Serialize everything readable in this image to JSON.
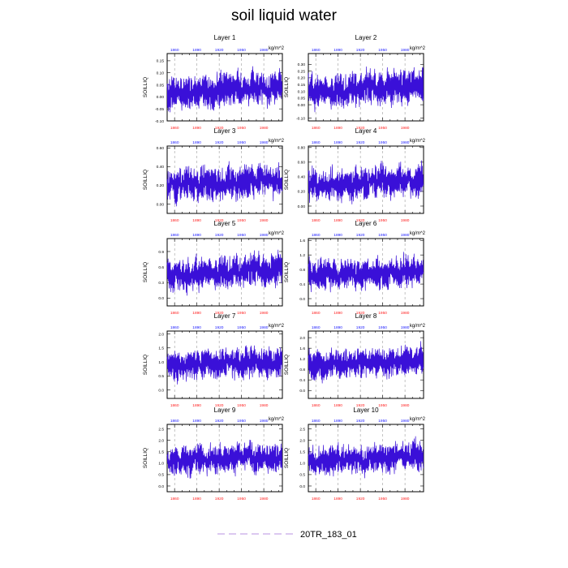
{
  "title": "soil liquid water",
  "legend": {
    "label": "20TR_183_01",
    "color": "#c8a8e8"
  },
  "colors": {
    "series": "#3a10d8",
    "top_ticks": "#2020ff",
    "bottom_ticks": "#ff2020",
    "grid": "#888888"
  },
  "chart_data": [
    {
      "type": "line",
      "title": "Layer 1",
      "ylabel": "SOILLIQ",
      "units": "kg/m^2",
      "ylim": [
        -0.1,
        0.18
      ],
      "yticks": [
        -0.1,
        -0.05,
        0.0,
        0.05,
        0.1,
        0.15
      ],
      "ytick_labels": [
        "-0.10",
        "-0.05",
        "0.00",
        "0.05",
        "0.10",
        "0.15"
      ],
      "xlim": [
        1850,
        2005
      ],
      "xticks": [
        1860,
        1890,
        1920,
        1950,
        1980
      ],
      "xtick_labels": [
        "1860",
        "1890",
        "1920",
        "1950",
        "1980"
      ],
      "grid": "dashed-x",
      "baseline": 0.02,
      "amplitude": 0.06,
      "trend": 0.02,
      "series": [
        {
          "name": "20TR_183_01"
        }
      ]
    },
    {
      "type": "line",
      "title": "Layer 2",
      "ylabel": "SOILLIQ",
      "units": "kg/m^2",
      "ylim": [
        -0.12,
        0.38
      ],
      "yticks": [
        -0.1,
        0.0,
        0.05,
        0.1,
        0.15,
        0.2,
        0.25,
        0.3
      ],
      "ytick_labels": [
        "-0.10",
        "0.00",
        "0.05",
        "0.10",
        "0.15",
        "0.20",
        "0.25",
        "0.30"
      ],
      "xlim": [
        1850,
        2005
      ],
      "xticks": [
        1860,
        1890,
        1920,
        1950,
        1980
      ],
      "xtick_labels": [
        "1860",
        "1890",
        "1920",
        "1950",
        "1980"
      ],
      "grid": "dashed-x",
      "baseline": 0.1,
      "amplitude": 0.11,
      "trend": 0.04,
      "series": [
        {
          "name": "20TR_183_01"
        }
      ]
    },
    {
      "type": "line",
      "title": "Layer 3",
      "ylabel": "SOILLIQ",
      "units": "kg/m^2",
      "ylim": [
        -0.1,
        0.62
      ],
      "yticks": [
        0.0,
        0.2,
        0.4,
        0.6
      ],
      "ytick_labels": [
        "0.00",
        "0.20",
        "0.40",
        "0.60"
      ],
      "xlim": [
        1850,
        2005
      ],
      "xticks": [
        1860,
        1890,
        1920,
        1950,
        1980
      ],
      "xtick_labels": [
        "1860",
        "1890",
        "1920",
        "1950",
        "1980"
      ],
      "grid": "dashed-x",
      "baseline": 0.2,
      "amplitude": 0.15,
      "trend": 0.06,
      "series": [
        {
          "name": "20TR_183_01"
        }
      ]
    },
    {
      "type": "line",
      "title": "Layer 4",
      "ylabel": "SOILLIQ",
      "units": "kg/m^2",
      "ylim": [
        -0.1,
        0.82
      ],
      "yticks": [
        0.0,
        0.2,
        0.4,
        0.6,
        0.8
      ],
      "ytick_labels": [
        "0.00",
        "0.20",
        "0.40",
        "0.60",
        "0.80"
      ],
      "xlim": [
        1850,
        2005
      ],
      "xticks": [
        1860,
        1890,
        1920,
        1950,
        1980
      ],
      "xtick_labels": [
        "1860",
        "1890",
        "1920",
        "1950",
        "1980"
      ],
      "grid": "dashed-x",
      "baseline": 0.28,
      "amplitude": 0.19,
      "trend": 0.08,
      "series": [
        {
          "name": "20TR_183_01"
        }
      ]
    },
    {
      "type": "line",
      "title": "Layer 5",
      "ylabel": "SOILLIQ",
      "units": "kg/m^2",
      "ylim": [
        -0.15,
        1.15
      ],
      "yticks": [
        0.0,
        0.3,
        0.6,
        0.9
      ],
      "ytick_labels": [
        "0.0",
        "0.3",
        "0.6",
        "0.9"
      ],
      "xlim": [
        1850,
        2005
      ],
      "xticks": [
        1860,
        1890,
        1920,
        1950,
        1980
      ],
      "xtick_labels": [
        "1860",
        "1890",
        "1920",
        "1950",
        "1980"
      ],
      "grid": "dashed-x",
      "baseline": 0.45,
      "amplitude": 0.27,
      "trend": 0.12,
      "series": [
        {
          "name": "20TR_183_01"
        }
      ]
    },
    {
      "type": "line",
      "title": "Layer 6",
      "ylabel": "SOILLIQ",
      "units": "kg/m^2",
      "ylim": [
        -0.2,
        1.65
      ],
      "yticks": [
        0.0,
        0.4,
        0.8,
        1.2,
        1.6
      ],
      "ytick_labels": [
        "0.0",
        "0.4",
        "0.8",
        "1.2",
        "1.6"
      ],
      "xlim": [
        1850,
        2005
      ],
      "xticks": [
        1860,
        1890,
        1920,
        1950,
        1980
      ],
      "xtick_labels": [
        "1860",
        "1890",
        "1920",
        "1950",
        "1980"
      ],
      "grid": "dashed-x",
      "baseline": 0.62,
      "amplitude": 0.36,
      "trend": 0.15,
      "series": [
        {
          "name": "20TR_183_01"
        }
      ]
    },
    {
      "type": "line",
      "title": "Layer 7",
      "ylabel": "SOILLIQ",
      "units": "kg/m^2",
      "ylim": [
        -0.3,
        2.1
      ],
      "yticks": [
        0.0,
        0.5,
        1.0,
        1.5,
        2.0
      ],
      "ytick_labels": [
        "0.0",
        "0.5",
        "1.0",
        "1.5",
        "2.0"
      ],
      "xlim": [
        1850,
        2005
      ],
      "xticks": [
        1860,
        1890,
        1920,
        1950,
        1980
      ],
      "xtick_labels": [
        "1860",
        "1890",
        "1920",
        "1950",
        "1980"
      ],
      "grid": "dashed-x",
      "baseline": 0.85,
      "amplitude": 0.45,
      "trend": 0.18,
      "series": [
        {
          "name": "20TR_183_01"
        }
      ]
    },
    {
      "type": "line",
      "title": "Layer 8",
      "ylabel": "SOILLIQ",
      "units": "kg/m^2",
      "ylim": [
        -0.3,
        2.25
      ],
      "yticks": [
        0.0,
        0.4,
        0.8,
        1.2,
        1.6,
        2.0
      ],
      "ytick_labels": [
        "0.0",
        "0.4",
        "0.8",
        "1.2",
        "1.6",
        "2.0"
      ],
      "xlim": [
        1850,
        2005
      ],
      "xticks": [
        1860,
        1890,
        1920,
        1950,
        1980
      ],
      "xtick_labels": [
        "1860",
        "1890",
        "1920",
        "1950",
        "1980"
      ],
      "grid": "dashed-x",
      "baseline": 0.95,
      "amplitude": 0.48,
      "trend": 0.18,
      "series": [
        {
          "name": "20TR_183_01"
        }
      ]
    },
    {
      "type": "line",
      "title": "Layer 9",
      "ylabel": "SOILLIQ",
      "units": "kg/m^2",
      "ylim": [
        -0.25,
        2.7
      ],
      "yticks": [
        0.0,
        0.5,
        1.0,
        1.5,
        2.0,
        2.5
      ],
      "ytick_labels": [
        "0.0",
        "0.5",
        "1.0",
        "1.5",
        "2.0",
        "2.5"
      ],
      "xlim": [
        1850,
        2005
      ],
      "xticks": [
        1860,
        1890,
        1920,
        1950,
        1980
      ],
      "xtick_labels": [
        "1860",
        "1890",
        "1920",
        "1950",
        "1980"
      ],
      "grid": "dashed-x",
      "baseline": 1.05,
      "amplitude": 0.55,
      "trend": 0.25,
      "series": [
        {
          "name": "20TR_183_01"
        }
      ]
    },
    {
      "type": "line",
      "title": "Layer 10",
      "ylabel": "SOILLIQ",
      "units": "kg/m^2",
      "ylim": [
        -0.25,
        2.7
      ],
      "yticks": [
        0.0,
        0.5,
        1.0,
        1.5,
        2.0,
        2.5
      ],
      "ytick_labels": [
        "0.0",
        "0.5",
        "1.0",
        "1.5",
        "2.0",
        "2.5"
      ],
      "xlim": [
        1850,
        2005
      ],
      "xticks": [
        1860,
        1890,
        1920,
        1950,
        1980
      ],
      "xtick_labels": [
        "1860",
        "1890",
        "1920",
        "1950",
        "1980"
      ],
      "grid": "dashed-x",
      "baseline": 1.05,
      "amplitude": 0.55,
      "trend": 0.25,
      "series": [
        {
          "name": "20TR_183_01"
        }
      ]
    }
  ]
}
